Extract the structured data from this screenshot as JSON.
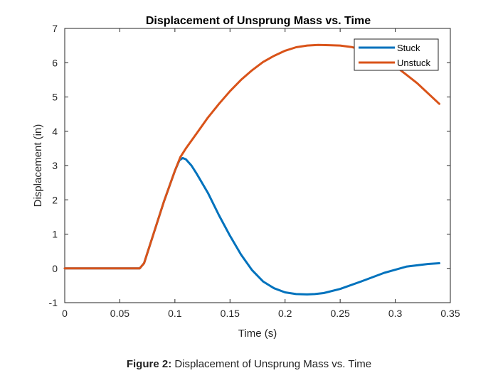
{
  "caption": {
    "label": "Figure 2:",
    "text": "Displacement of Unsprung Mass vs. Time"
  },
  "chart_data": {
    "type": "line",
    "title": "Displacement of Unsprung Mass vs. Time",
    "xlabel": "Time (s)",
    "ylabel": "Displacement (in)",
    "xlim": [
      0,
      0.35
    ],
    "ylim": [
      -1,
      7
    ],
    "xticks": [
      0,
      0.05,
      0.1,
      0.15,
      0.2,
      0.25,
      0.3,
      0.35
    ],
    "xtick_labels": [
      "0",
      "0.05",
      "0.1",
      "0.15",
      "0.2",
      "0.25",
      "0.3",
      "0.35"
    ],
    "yticks": [
      -1,
      0,
      1,
      2,
      3,
      4,
      5,
      6,
      7
    ],
    "ytick_labels": [
      "-1",
      "0",
      "1",
      "2",
      "3",
      "4",
      "5",
      "6",
      "7"
    ],
    "grid": false,
    "legend_position": "top-right",
    "series": [
      {
        "name": "Stuck",
        "color": "#0072BD",
        "x": [
          0,
          0.068,
          0.072,
          0.08,
          0.09,
          0.1,
          0.104,
          0.107,
          0.11,
          0.115,
          0.12,
          0.13,
          0.14,
          0.15,
          0.16,
          0.17,
          0.18,
          0.19,
          0.2,
          0.21,
          0.22,
          0.227,
          0.235,
          0.25,
          0.27,
          0.29,
          0.31,
          0.33,
          0.34
        ],
        "y": [
          0,
          0,
          0.15,
          0.95,
          1.95,
          2.85,
          3.15,
          3.22,
          3.18,
          3.0,
          2.75,
          2.2,
          1.55,
          0.95,
          0.4,
          -0.05,
          -0.38,
          -0.58,
          -0.7,
          -0.75,
          -0.76,
          -0.75,
          -0.72,
          -0.6,
          -0.37,
          -0.13,
          0.05,
          0.13,
          0.15
        ]
      },
      {
        "name": "Unstuck",
        "color": "#D95319",
        "x": [
          0,
          0.068,
          0.072,
          0.08,
          0.09,
          0.1,
          0.105,
          0.11,
          0.12,
          0.13,
          0.14,
          0.15,
          0.16,
          0.17,
          0.18,
          0.19,
          0.2,
          0.21,
          0.22,
          0.23,
          0.24,
          0.25,
          0.26,
          0.27,
          0.28,
          0.29,
          0.3,
          0.31,
          0.32,
          0.33,
          0.34
        ],
        "y": [
          0,
          0,
          0.15,
          0.95,
          1.95,
          2.85,
          3.25,
          3.5,
          3.95,
          4.4,
          4.8,
          5.17,
          5.5,
          5.78,
          6.02,
          6.2,
          6.35,
          6.45,
          6.5,
          6.52,
          6.51,
          6.5,
          6.46,
          6.38,
          6.26,
          6.1,
          5.9,
          5.65,
          5.4,
          5.1,
          4.8
        ]
      }
    ]
  }
}
